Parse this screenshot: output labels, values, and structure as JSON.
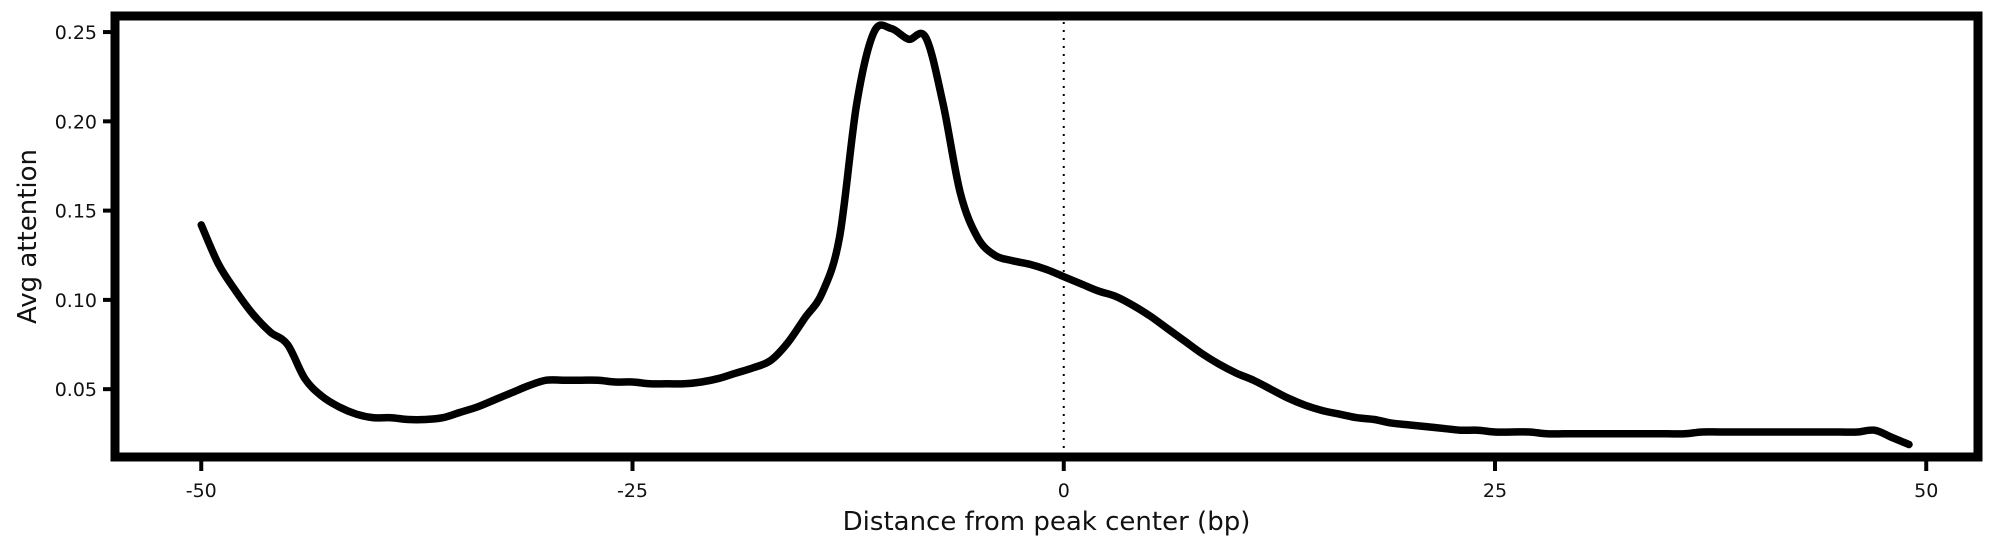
{
  "chart_data": {
    "type": "line",
    "title": "",
    "xlabel": "Distance from peak center (bp)",
    "ylabel": "Avg attention",
    "xlim": [
      -55,
      53
    ],
    "ylim": [
      0.012,
      0.259
    ],
    "x_ticks": [
      -50,
      -25,
      0,
      25,
      50
    ],
    "x_tick_labels": [
      "-50",
      "-25",
      "0",
      "25",
      "50"
    ],
    "y_ticks": [
      0.05,
      0.1,
      0.15,
      0.2,
      0.25
    ],
    "y_tick_labels": [
      "0.05",
      "0.10",
      "0.15",
      "0.20",
      "0.25"
    ],
    "reference_line": {
      "x": 0,
      "style": "dotted"
    },
    "grid": false,
    "legend": "none",
    "line_color": "#000000",
    "series": [
      {
        "x": [
          -50,
          -49,
          -48,
          -47,
          -46,
          -45,
          -44,
          -43,
          -42,
          -41,
          -40,
          -39,
          -38,
          -37,
          -36,
          -35,
          -34,
          -33,
          -32,
          -31,
          -30,
          -29,
          -28,
          -27,
          -26,
          -25,
          -24,
          -23,
          -22,
          -21,
          -20,
          -19,
          -18,
          -17,
          -16,
          -15,
          -14,
          -13,
          -12,
          -11,
          -10,
          -9,
          -8,
          -7,
          -6,
          -5,
          -4,
          -3,
          -2,
          -1,
          0,
          1,
          2,
          3,
          4,
          5,
          6,
          7,
          8,
          9,
          10,
          11,
          12,
          13,
          14,
          15,
          16,
          17,
          18,
          19,
          20,
          21,
          22,
          23,
          24,
          25,
          26,
          27,
          28,
          29,
          30,
          31,
          32,
          33,
          34,
          35,
          36,
          37,
          38,
          39,
          40,
          41,
          42,
          43,
          44,
          45,
          46,
          47,
          48,
          49
        ],
        "values": [
          0.142,
          0.12,
          0.105,
          0.092,
          0.082,
          0.075,
          0.056,
          0.046,
          0.04,
          0.036,
          0.034,
          0.034,
          0.033,
          0.033,
          0.034,
          0.037,
          0.04,
          0.044,
          0.048,
          0.052,
          0.055,
          0.055,
          0.055,
          0.055,
          0.054,
          0.054,
          0.053,
          0.053,
          0.053,
          0.054,
          0.056,
          0.059,
          0.062,
          0.066,
          0.076,
          0.09,
          0.104,
          0.135,
          0.21,
          0.25,
          0.252,
          0.246,
          0.247,
          0.21,
          0.16,
          0.135,
          0.125,
          0.122,
          0.12,
          0.117,
          0.113,
          0.109,
          0.105,
          0.102,
          0.097,
          0.091,
          0.084,
          0.077,
          0.07,
          0.064,
          0.059,
          0.055,
          0.05,
          0.045,
          0.041,
          0.038,
          0.036,
          0.034,
          0.033,
          0.031,
          0.03,
          0.029,
          0.028,
          0.027,
          0.027,
          0.026,
          0.026,
          0.026,
          0.025,
          0.025,
          0.025,
          0.025,
          0.025,
          0.025,
          0.025,
          0.025,
          0.025,
          0.026,
          0.026,
          0.026,
          0.026,
          0.026,
          0.026,
          0.026,
          0.026,
          0.026,
          0.026,
          0.027,
          0.023,
          0.019
        ]
      }
    ]
  }
}
